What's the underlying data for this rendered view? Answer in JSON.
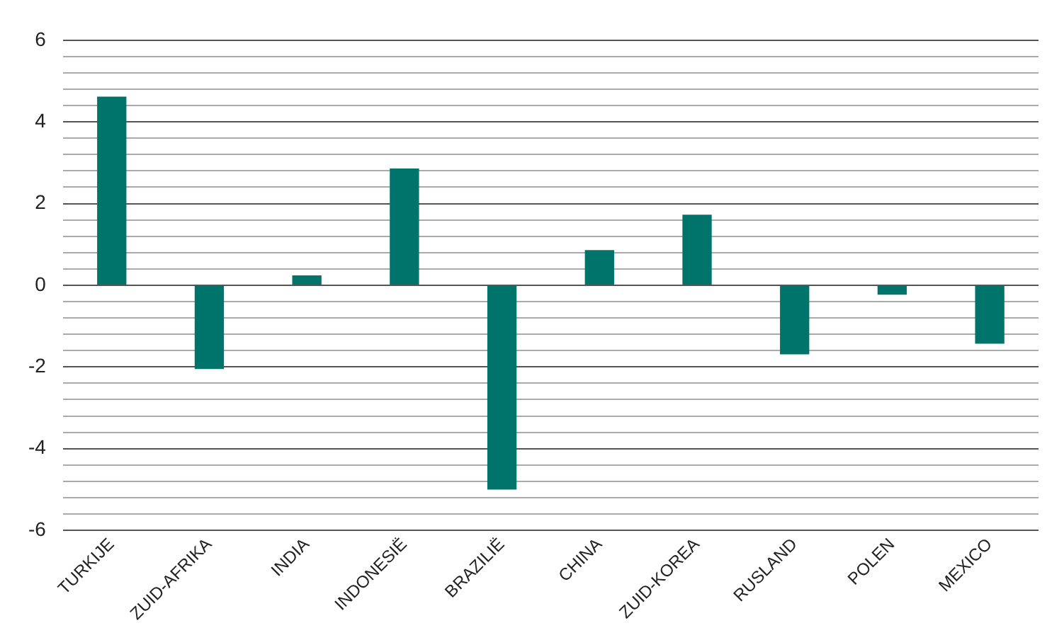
{
  "chart_data": {
    "type": "bar",
    "categories": [
      "TURKIJE",
      "ZUID-AFRIKA",
      "INDIA",
      "INDONESIË",
      "BRAZILIË",
      "CHINA",
      "ZUID-KOREA",
      "RUSLAND",
      "POLEN",
      "MEXICO"
    ],
    "values": [
      4.62,
      -2.05,
      0.24,
      2.86,
      -5.0,
      0.86,
      1.73,
      -1.69,
      -0.23,
      -1.43
    ],
    "color": "#00746b",
    "ylim": [
      -6,
      6
    ],
    "yticks": [
      -6,
      {
        "value": -5.6,
        "label": null
      },
      {
        "value": -5.2,
        "label": null
      },
      {
        "value": -4.8,
        "label": null
      },
      {
        "value": -4.4,
        "label": null
      },
      -4,
      {
        "value": -3.6,
        "label": null
      },
      {
        "value": -3.2,
        "label": null
      },
      {
        "value": -2.8,
        "label": null
      },
      {
        "value": -2.4,
        "label": null
      },
      -2,
      {
        "value": -1.6,
        "label": null
      },
      {
        "value": -1.2,
        "label": null
      },
      {
        "value": -0.8,
        "label": null
      },
      {
        "value": -0.4,
        "label": null
      },
      0,
      {
        "value": 0.4,
        "label": null
      },
      {
        "value": 0.8,
        "label": null
      },
      {
        "value": 1.2,
        "label": null
      },
      {
        "value": 1.6,
        "label": null
      },
      2,
      {
        "value": 2.4,
        "label": null
      },
      {
        "value": 2.8,
        "label": null
      },
      {
        "value": 3.2,
        "label": null
      },
      {
        "value": 3.6,
        "label": null
      },
      4,
      {
        "value": 4.4,
        "label": null
      },
      {
        "value": 4.8,
        "label": null
      },
      {
        "value": 5.2,
        "label": null
      },
      {
        "value": 5.6,
        "label": null
      },
      6
    ],
    "grid": "y"
  }
}
